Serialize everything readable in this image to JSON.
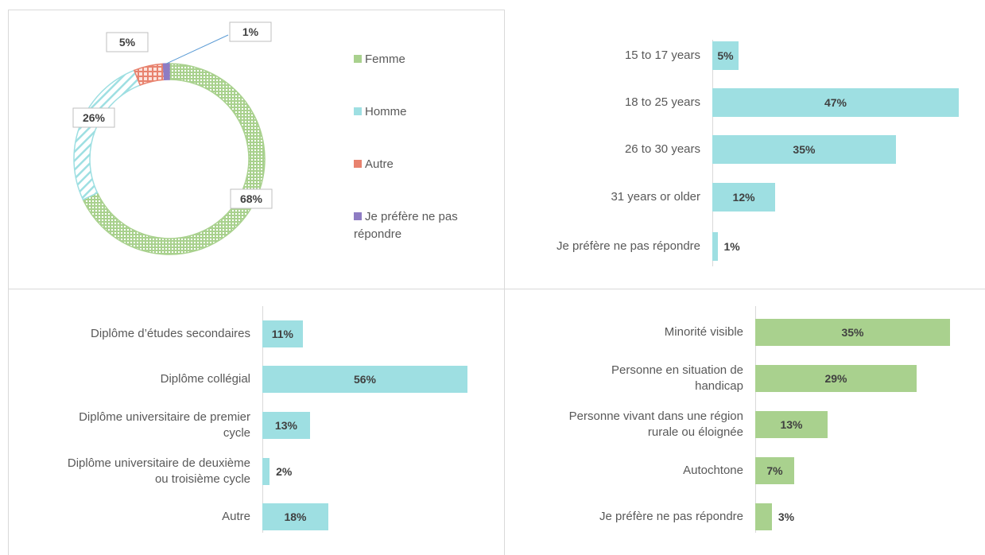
{
  "chart_data": [
    {
      "type": "pie",
      "donut": true,
      "categories": [
        "Femme",
        "Homme",
        "Autre",
        "Je préfère ne pas répondre"
      ],
      "values": [
        68,
        26,
        5,
        1
      ],
      "value_labels": [
        "68%",
        "26%",
        "5%",
        "1%"
      ],
      "colors": [
        "#a9d18e",
        "#9edfe2",
        "#e8826e",
        "#8e7cc3"
      ],
      "legend": "right"
    },
    {
      "type": "bar",
      "orientation": "horizontal",
      "categories": [
        "15 to 17 years",
        "18 to 25 years",
        "26 to 30 years",
        "31 years or older",
        "Je préfère ne pas répondre"
      ],
      "values": [
        5,
        47,
        35,
        12,
        1
      ],
      "value_labels": [
        "5%",
        "47%",
        "35%",
        "12%",
        "1%"
      ],
      "color": "#9edfe2"
    },
    {
      "type": "bar",
      "orientation": "horizontal",
      "categories": [
        "Diplôme d’études secondaires",
        "Diplôme collégial",
        "Diplôme universitaire de premier cycle",
        "Diplôme universitaire de deuxième ou troisième cycle",
        "Autre"
      ],
      "values": [
        11,
        56,
        13,
        2,
        18
      ],
      "value_labels": [
        "11%",
        "56%",
        "13%",
        "2%",
        "18%"
      ],
      "color": "#9edfe2"
    },
    {
      "type": "bar",
      "orientation": "horizontal",
      "categories": [
        "Minorité visible",
        "Personne en situation de handicap",
        "Personne vivant dans une région rurale ou éloignée",
        "Autochtone",
        "Je préfère ne pas répondre"
      ],
      "values": [
        35,
        29,
        13,
        7,
        3
      ],
      "value_labels": [
        "35%",
        "29%",
        "13%",
        "7%",
        "3%"
      ],
      "color": "#a9d18e"
    }
  ]
}
